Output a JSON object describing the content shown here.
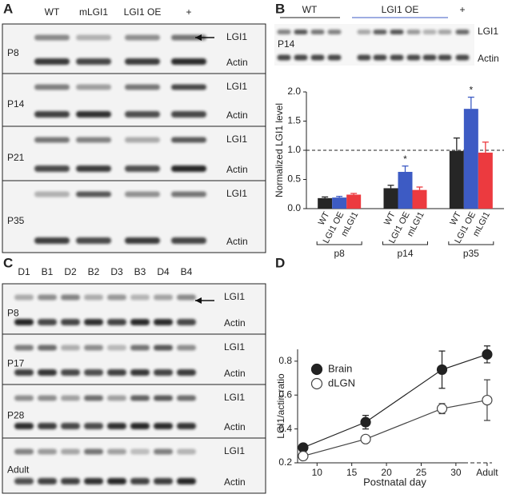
{
  "panel_labels": [
    "A",
    "B",
    "C",
    "D"
  ],
  "blot_a": {
    "lanes": [
      "WT",
      "mLGI1",
      "LGI1 OE",
      "+"
    ],
    "rows": [
      {
        "age": "P8",
        "bands": [
          "LGI1",
          "Actin"
        ]
      },
      {
        "age": "P14",
        "bands": [
          "LGI1",
          "Actin"
        ]
      },
      {
        "age": "P21",
        "bands": [
          "LGI1",
          "Actin"
        ]
      },
      {
        "age": "P35",
        "bands": [
          "LGI1",
          "Actin"
        ]
      }
    ]
  },
  "blot_b": {
    "groups": [
      "WT",
      "LGI1 OE",
      "+"
    ],
    "age": "P14",
    "bands": [
      "LGI1",
      "Actin"
    ]
  },
  "blot_c": {
    "lanes": [
      "D1",
      "B1",
      "D2",
      "B2",
      "D3",
      "B3",
      "D4",
      "B4"
    ],
    "rows": [
      {
        "age": "P8",
        "bands": [
          "LGI1",
          "Actin"
        ]
      },
      {
        "age": "P17",
        "bands": [
          "LGI1",
          "Actin"
        ]
      },
      {
        "age": "P28",
        "bands": [
          "LGI1",
          "Actin"
        ]
      },
      {
        "age": "Adult",
        "bands": [
          "LGI1",
          "Actin"
        ]
      }
    ]
  },
  "chart_data": [
    {
      "type": "bar",
      "y_label": "Normalized LGI1 level",
      "categories": [
        "p8",
        "p14",
        "p35"
      ],
      "series": [
        {
          "name": "WT",
          "color": "#262626",
          "values": [
            0.18,
            0.35,
            0.99
          ],
          "errors": [
            0.02,
            0.05,
            0.22
          ]
        },
        {
          "name": "LGI1 OE",
          "color": "#3d5bc4",
          "values": [
            0.19,
            0.63,
            1.71
          ],
          "errors": [
            0.02,
            0.1,
            0.2
          ]
        },
        {
          "name": "mLGI1",
          "color": "#ec3a3f",
          "values": [
            0.24,
            0.32,
            0.96
          ],
          "errors": [
            0.02,
            0.05,
            0.18
          ]
        }
      ],
      "ylim": [
        0,
        2
      ],
      "yticks": [
        {
          "value": 0,
          "label": "0.0"
        },
        0.5,
        {
          "value": 1,
          "label": "1.0"
        },
        1.5,
        {
          "value": 2,
          "label": "2.0"
        }
      ],
      "reference_line": 1,
      "annotations": [
        {
          "text": "*",
          "category": "p14",
          "series": "LGI1 OE"
        },
        {
          "text": "*",
          "category": "p35",
          "series": "LGI1 OE"
        }
      ]
    },
    {
      "type": "line",
      "x_label": "Postnatal day",
      "y_label": "LGI1/actin ratio",
      "series": [
        {
          "name": "Brain",
          "color": "#222222",
          "fill": "#222222",
          "x": [
            8,
            17,
            28,
            34.5
          ],
          "values": [
            0.29,
            0.44,
            0.75,
            0.84
          ],
          "errors": [
            0.02,
            0.04,
            0.11,
            0.05
          ]
        },
        {
          "name": "dLGN",
          "color": "#444444",
          "fill": "#ffffff",
          "x": [
            8,
            17,
            28,
            34.5
          ],
          "values": [
            0.24,
            0.34,
            0.52,
            0.57
          ],
          "errors": [
            0.02,
            0.02,
            0.03,
            0.12
          ]
        }
      ],
      "xlim": [
        7.2,
        35.2
      ],
      "xticks": [
        10,
        15,
        20,
        25,
        30,
        {
          "value": 34.5,
          "label": "Adult"
        }
      ],
      "ylim": [
        0.2,
        0.87
      ],
      "yticks": [
        0.2,
        0.4,
        0.6,
        0.8
      ],
      "legend": "upper left"
    }
  ]
}
